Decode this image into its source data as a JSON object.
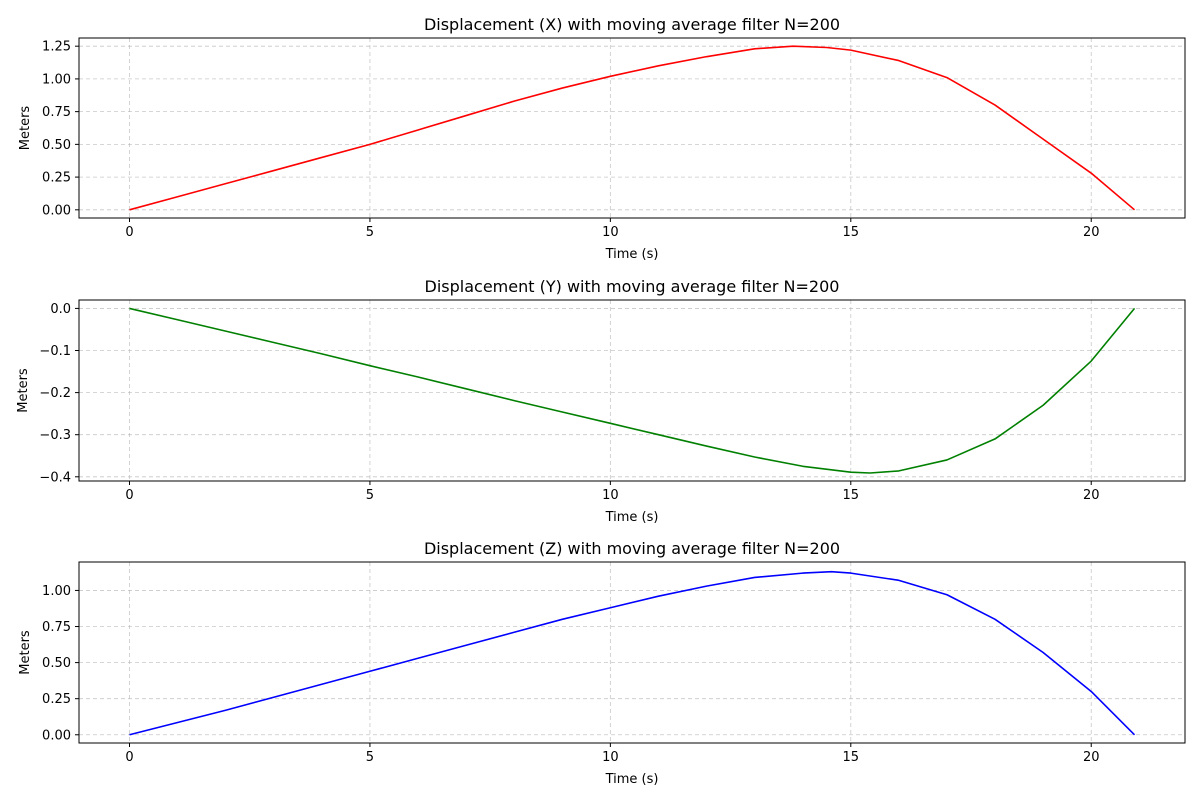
{
  "chart_data": [
    {
      "type": "line",
      "title": "Displacement (X) with moving average filter N=200",
      "xlabel": "Time (s)",
      "ylabel": "Meters",
      "xlim": [
        -1.05,
        21.95
      ],
      "ylim": [
        -0.0625,
        1.3125
      ],
      "xticks": [
        0,
        5,
        10,
        15,
        20
      ],
      "yticks": [
        0.0,
        0.25,
        0.5,
        0.75,
        1.0,
        1.25
      ],
      "ytick_labels": [
        "0.00",
        "0.25",
        "0.50",
        "0.75",
        "1.00",
        "1.25"
      ],
      "grid": true,
      "series": [
        {
          "color": "#ff0000",
          "x": [
            0,
            1,
            2,
            3,
            4,
            5,
            6,
            7,
            8,
            9,
            10,
            11,
            12,
            13,
            13.8,
            14.5,
            15,
            16,
            17,
            18,
            19,
            20,
            20.9
          ],
          "y": [
            0.0,
            0.1,
            0.2,
            0.3,
            0.4,
            0.5,
            0.61,
            0.72,
            0.83,
            0.93,
            1.02,
            1.1,
            1.17,
            1.23,
            1.25,
            1.24,
            1.22,
            1.14,
            1.01,
            0.8,
            0.54,
            0.28,
            0.0
          ]
        }
      ]
    },
    {
      "type": "line",
      "title": "Displacement (Y) with moving average filter N=200",
      "xlabel": "Time (s)",
      "ylabel": "Meters",
      "xlim": [
        -1.05,
        21.95
      ],
      "ylim": [
        -0.41,
        0.02
      ],
      "xticks": [
        0,
        5,
        10,
        15,
        20
      ],
      "yticks": [
        0.0,
        -0.1,
        -0.2,
        -0.3,
        -0.4
      ],
      "ytick_labels": [
        "0.0",
        "−0.1",
        "−0.2",
        "−0.3",
        "−0.4"
      ],
      "grid": true,
      "series": [
        {
          "color": "#008000",
          "x": [
            0,
            1,
            2,
            3,
            4,
            5,
            6,
            7,
            8,
            9,
            10,
            11,
            12,
            13,
            14,
            15,
            15.4,
            16,
            17,
            18,
            19,
            20,
            20.9
          ],
          "y": [
            0.0,
            -0.027,
            -0.054,
            -0.081,
            -0.108,
            -0.136,
            -0.163,
            -0.191,
            -0.219,
            -0.246,
            -0.273,
            -0.3,
            -0.327,
            -0.353,
            -0.375,
            -0.389,
            -0.391,
            -0.386,
            -0.36,
            -0.31,
            -0.23,
            -0.125,
            0.0
          ]
        }
      ]
    },
    {
      "type": "line",
      "title": "Displacement (Z) with moving average filter N=200",
      "xlabel": "Time (s)",
      "ylabel": "Meters",
      "xlim": [
        -1.05,
        21.95
      ],
      "ylim": [
        -0.057,
        1.197
      ],
      "xticks": [
        0,
        5,
        10,
        15,
        20
      ],
      "yticks": [
        0.0,
        0.25,
        0.5,
        0.75,
        1.0
      ],
      "ytick_labels": [
        "0.00",
        "0.25",
        "0.50",
        "0.75",
        "1.00"
      ],
      "grid": true,
      "series": [
        {
          "color": "#0000ff",
          "x": [
            0,
            1,
            2,
            3,
            4,
            5,
            6,
            7,
            8,
            9,
            10,
            11,
            12,
            13,
            14,
            14.6,
            15,
            16,
            17,
            18,
            19,
            20,
            20.9
          ],
          "y": [
            0.0,
            0.085,
            0.17,
            0.26,
            0.35,
            0.44,
            0.53,
            0.62,
            0.71,
            0.8,
            0.88,
            0.96,
            1.03,
            1.09,
            1.12,
            1.13,
            1.12,
            1.07,
            0.97,
            0.8,
            0.57,
            0.3,
            0.0
          ]
        }
      ]
    }
  ]
}
